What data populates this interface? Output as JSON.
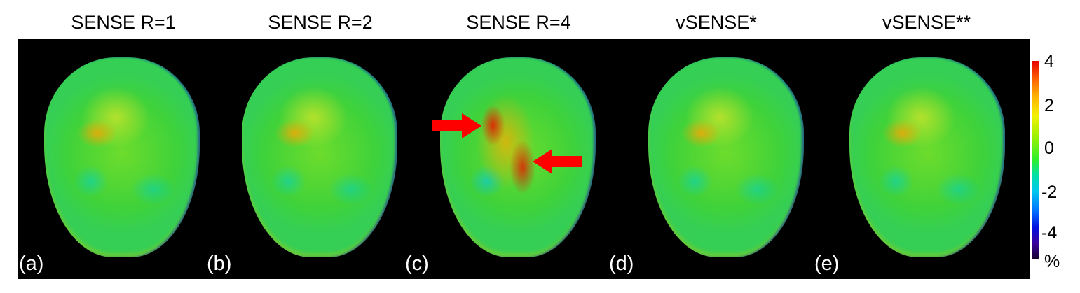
{
  "panels": [
    {
      "title": "SENSE R=1",
      "label": "(a)"
    },
    {
      "title": "SENSE R=2",
      "label": "(b)"
    },
    {
      "title": "SENSE R=4",
      "label": "(c)"
    },
    {
      "title": "vSENSE*",
      "label": "(d)"
    },
    {
      "title": "vSENSE**",
      "label": "(e)"
    }
  ],
  "colorbar": {
    "ticks": [
      "4",
      "2",
      "0",
      "-2",
      "-4"
    ],
    "unit": "%",
    "range": [
      -4,
      4
    ],
    "colormap": "jet"
  },
  "annotations": {
    "arrow_color": "#ff0000",
    "arrow_count": 2,
    "panel": "(c)"
  },
  "colors": {
    "background": "#000000",
    "brain_base": "#3fd23a"
  }
}
